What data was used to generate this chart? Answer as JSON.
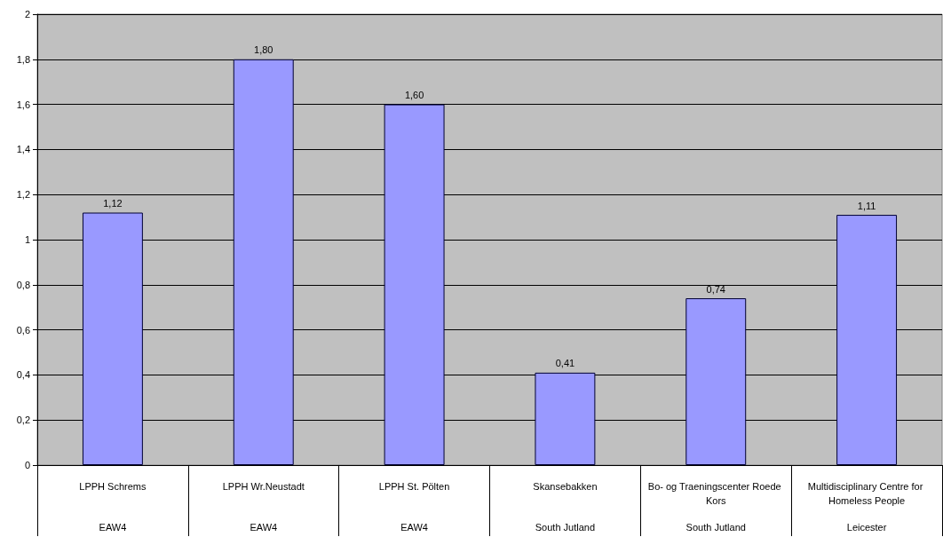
{
  "chart_data": {
    "type": "bar",
    "categories": [
      "LPPH Schrems",
      "LPPH Wr.Neustadt",
      "LPPH St. Pölten",
      "Skansebakken",
      "Bo- og Traeningscenter Roede Kors",
      "Multidisciplinary Centre for Homeless People"
    ],
    "values": [
      1.12,
      1.8,
      1.6,
      0.41,
      0.74,
      1.11
    ],
    "value_labels": [
      "1,12",
      "1,80",
      "1,60",
      "0,41",
      "0,74",
      "1,11"
    ],
    "color": "#9999ff",
    "annotations": [
      "EAW4",
      "EAW4",
      "EAW4",
      "South Jutland",
      "South Jutland",
      "Leicester"
    ],
    "ylim": [
      0,
      2
    ],
    "yticks": [
      0,
      {
        "value": 0.2,
        "label": "0,2"
      },
      {
        "value": 0.4,
        "label": "0,4"
      },
      {
        "value": 0.6,
        "label": "0,6"
      },
      {
        "value": 0.8,
        "label": "0,8"
      },
      1,
      {
        "value": 1.2,
        "label": "1,2"
      },
      {
        "value": 1.4,
        "label": "1,4"
      },
      {
        "value": 1.6,
        "label": "1,6"
      },
      {
        "value": 1.8,
        "label": "1,8"
      },
      2
    ],
    "grid": "y"
  }
}
